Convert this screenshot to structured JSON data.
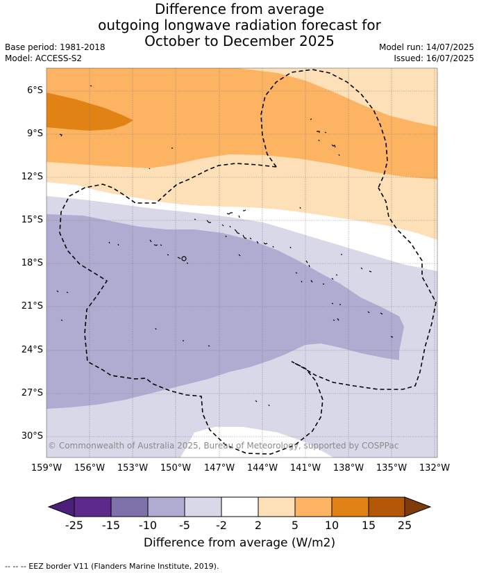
{
  "title": {
    "line1": "Difference from average",
    "line2": "outgoing longwave radiation forecast for",
    "line3": "October to December 2025"
  },
  "meta": {
    "base_period": "Base period: 1981-2018",
    "model": "Model: ACCESS-S2",
    "model_run": "Model run: 14/07/2025",
    "issued": "Issued: 16/07/2025"
  },
  "map": {
    "lat_labels": [
      "6°S",
      "9°S",
      "12°S",
      "15°S",
      "18°S",
      "21°S",
      "24°S",
      "27°S",
      "30°S"
    ],
    "lon_labels": [
      "159°W",
      "156°W",
      "153°W",
      "150°W",
      "147°W",
      "144°W",
      "141°W",
      "138°W",
      "135°W",
      "132°W"
    ],
    "copyright": "© Commonwealth of Australia 2025, Bureau of Meteorology, supported by COSPPac",
    "palette": {
      "neg25": "#4b1f7a",
      "neg15": "#5d2a8c",
      "neg10": "#7f72aa",
      "neg5": "#b0abd0",
      "neg2": "#d8d8e8",
      "neutral": "#ffffff",
      "pos2": "#fde0b8",
      "pos5": "#fdb462",
      "pos10": "#e08214",
      "pos15": "#b35806",
      "pos25": "#7f3b08"
    }
  },
  "colorbar": {
    "ticks": [
      "-25",
      "-15",
      "-10",
      "-5",
      "-2",
      "2",
      "5",
      "10",
      "15",
      "25"
    ],
    "title": "Difference from average (W/m2)"
  },
  "footnote": "--  --  -- EEZ border V11 (Flanders Marine Institute, 2019)."
}
